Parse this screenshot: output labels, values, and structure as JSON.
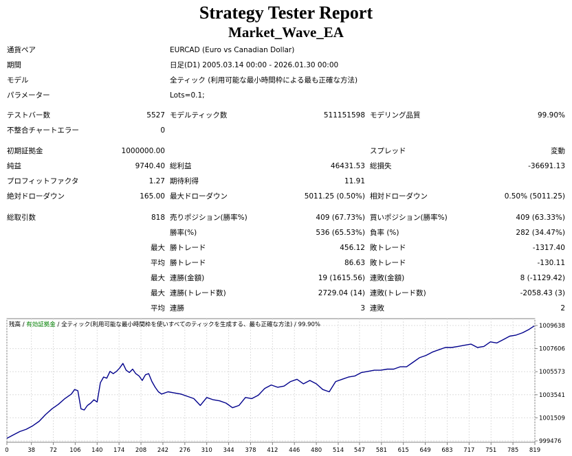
{
  "report": {
    "title": "Strategy Tester Report",
    "subtitle": "Market_Wave_EA"
  },
  "info": [
    {
      "label": "通貨ペア",
      "value": "EURCAD (Euro vs Canadian Dollar)"
    },
    {
      "label": "期間",
      "value": "日足(D1) 2005.03.14 00:00 - 2026.01.30 00:00"
    },
    {
      "label": "モデル",
      "value": "全ティック (利用可能な最小時間枠による最も正確な方法)"
    },
    {
      "label": "パラメーター",
      "value": "Lots=0.1;"
    }
  ],
  "stats": {
    "bars_label": "テストバー数",
    "bars_value": "5527",
    "ticks_label": "モデルティック数",
    "ticks_value": "511151598",
    "quality_label": "モデリング品質",
    "quality_value": "99.90%",
    "mismatch_label": "不整合チャートエラー",
    "mismatch_value": "0",
    "deposit_label": "初期証拠金",
    "deposit_value": "1000000.00",
    "spread_label": "スプレッド",
    "spread_value": "変動",
    "net_label": "純益",
    "net_value": "9740.40",
    "gross_profit_label": "総利益",
    "gross_profit_value": "46431.53",
    "gross_loss_label": "総損失",
    "gross_loss_value": "-36691.13",
    "pf_label": "プロフィットファクタ",
    "pf_value": "1.27",
    "payoff_label": "期待利得",
    "payoff_value": "11.91",
    "abs_dd_label": "絶対ドローダウン",
    "abs_dd_value": "165.00",
    "max_dd_label": "最大ドローダウン",
    "max_dd_value": "5011.25 (0.50%)",
    "rel_dd_label": "相対ドローダウン",
    "rel_dd_value": "0.50% (5011.25)",
    "total_label": "総取引数",
    "total_value": "818",
    "short_label": "売りポジション(勝率%)",
    "short_value": "409 (67.73%)",
    "long_label": "買いポジション(勝率%)",
    "long_value": "409 (63.33%)",
    "win_rate_label": "勝率(%)",
    "win_rate_value": "536 (65.53%)",
    "loss_rate_label": "負率 (%)",
    "loss_rate_value": "282 (34.47%)",
    "max_label_1": "最大",
    "largest_win_label": "勝トレード",
    "largest_win_value": "456.12",
    "largest_loss_label": "敗トレード",
    "largest_loss_value": "-1317.40",
    "avg_label_1": "平均",
    "avg_win_label": "勝トレード",
    "avg_win_value": "86.63",
    "avg_loss_label": "敗トレード",
    "avg_loss_value": "-130.11",
    "max_label_2": "最大",
    "max_cons_wins_label": "連勝(金額)",
    "max_cons_wins_value": "19 (1615.56)",
    "max_cons_losses_label": "連敗(金額)",
    "max_cons_losses_value": "8 (-1129.42)",
    "max_label_3": "最大",
    "max_cons_profit_label": "連勝(トレード数)",
    "max_cons_profit_value": "2729.04 (14)",
    "max_cons_loss_label": "連敗(トレード数)",
    "max_cons_loss_value": "-2058.43 (3)",
    "avg_label_2": "平均",
    "avg_cons_wins_label": "連勝",
    "avg_cons_wins_value": "3",
    "avg_cons_losses_label": "連敗",
    "avg_cons_losses_value": "2"
  },
  "chart_legend": {
    "balance": "残高",
    "sep1": " / ",
    "equity": "有効証拠金",
    "sep2": " / ",
    "model": "全ティック(利用可能な最小時間枠を使いすべてのティックを生成する、最も正確な方法)",
    "sep3": " / ",
    "quality": "99.90%"
  },
  "chart_data": {
    "type": "line",
    "series": [
      {
        "name": "残高",
        "x": [
          0,
          10,
          20,
          30,
          40,
          50,
          60,
          70,
          80,
          90,
          100,
          105,
          110,
          115,
          120,
          125,
          130,
          135,
          140,
          145,
          150,
          155,
          160,
          165,
          170,
          175,
          180,
          185,
          190,
          195,
          200,
          205,
          210,
          215,
          220,
          225,
          230,
          235,
          240,
          250,
          260,
          270,
          280,
          290,
          300,
          310,
          320,
          330,
          340,
          350,
          360,
          370,
          380,
          390,
          400,
          410,
          420,
          430,
          440,
          450,
          460,
          470,
          480,
          490,
          500,
          510,
          520,
          530,
          540,
          550,
          560,
          570,
          580,
          590,
          600,
          610,
          620,
          630,
          640,
          650,
          660,
          670,
          680,
          690,
          700,
          710,
          720,
          730,
          740,
          750,
          760,
          770,
          780,
          790,
          800,
          810,
          818
        ],
        "y": [
          999700,
          1000000,
          1000300,
          1000500,
          1000800,
          1001200,
          1001800,
          1002300,
          1002700,
          1003200,
          1003600,
          1004000,
          1003900,
          1002300,
          1002200,
          1002600,
          1002800,
          1003100,
          1002900,
          1004600,
          1005100,
          1005000,
          1005600,
          1005400,
          1005600,
          1005900,
          1006300,
          1005700,
          1005500,
          1005800,
          1005400,
          1005200,
          1004800,
          1005300,
          1005400,
          1004700,
          1004200,
          1003800,
          1003600,
          1003800,
          1003700,
          1003600,
          1003400,
          1003200,
          1002600,
          1003300,
          1003100,
          1003000,
          1002800,
          1002400,
          1002600,
          1003300,
          1003200,
          1003500,
          1004100,
          1004400,
          1004200,
          1004300,
          1004700,
          1004900,
          1004500,
          1004800,
          1004500,
          1004000,
          1003800,
          1004700,
          1004900,
          1005100,
          1005200,
          1005500,
          1005600,
          1005700,
          1005700,
          1005800,
          1005800,
          1006000,
          1006000,
          1006400,
          1006800,
          1007000,
          1007300,
          1007500,
          1007700,
          1007700,
          1007800,
          1007900,
          1008000,
          1007700,
          1007800,
          1008200,
          1008100,
          1008400,
          1008700,
          1008800,
          1009000,
          1009300,
          1009600
        ]
      }
    ],
    "yticks": [
      "1009638",
      "1007606",
      "1005573",
      "1003541",
      "1001509",
      "999476"
    ],
    "xticks": [
      "0",
      "38",
      "72",
      "106",
      "140",
      "174",
      "208",
      "242",
      "276",
      "310",
      "344",
      "378",
      "412",
      "446",
      "480",
      "514",
      "547",
      "581",
      "615",
      "649",
      "683",
      "717",
      "751",
      "785",
      "819"
    ],
    "ylim": [
      999476,
      1009638
    ],
    "xlim": [
      0,
      819
    ],
    "grid": true,
    "colors": {
      "line": "#00008b",
      "grid": "#dddddd",
      "axis": "#808080"
    }
  }
}
